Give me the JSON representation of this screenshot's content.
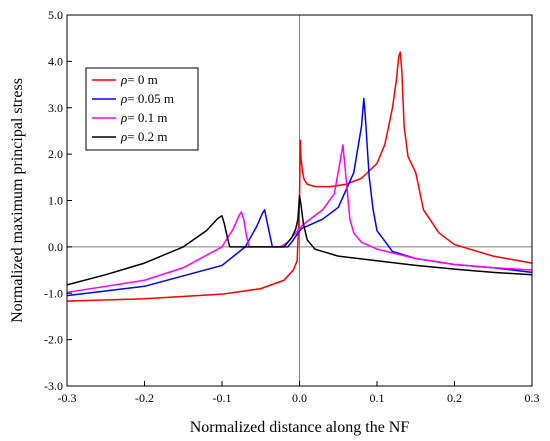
{
  "chart_data": {
    "type": "line",
    "xlabel": "Normalized distance along the NF",
    "ylabel": "Normalized maximum principal stress",
    "xlim": [
      -0.3,
      0.3
    ],
    "ylim": [
      -3.0,
      5.0
    ],
    "x_ticks": [
      "-0.3",
      "-0.2",
      "-0.1",
      "0.0",
      "0.1",
      "0.2",
      "0.3"
    ],
    "y_ticks": [
      "-3.0",
      "-2.0",
      "-1.0",
      "0.0",
      "1.0",
      "2.0",
      "3.0",
      "4.0",
      "5.0"
    ],
    "legend": {
      "placement": "top-left"
    },
    "reference_lines": {
      "x": 0,
      "y": 0
    },
    "series": [
      {
        "name_symbol": "ρ",
        "name_rest": "= 0 m",
        "color": "#ff0000",
        "x": [
          -0.3,
          -0.2,
          -0.1,
          -0.05,
          -0.02,
          -0.008,
          -0.003,
          0.0,
          0.001,
          0.002,
          0.004,
          0.006,
          0.01,
          0.02,
          0.04,
          0.06,
          0.08,
          0.1,
          0.11,
          0.12,
          0.125,
          0.128,
          0.13,
          0.132,
          0.135,
          0.14,
          0.15,
          0.16,
          0.18,
          0.2,
          0.25,
          0.3
        ],
        "y": [
          -1.17,
          -1.12,
          -1.02,
          -0.9,
          -0.72,
          -0.5,
          -0.3,
          1.0,
          2.3,
          1.9,
          1.6,
          1.45,
          1.35,
          1.3,
          1.3,
          1.35,
          1.48,
          1.8,
          2.2,
          3.0,
          3.6,
          4.1,
          4.2,
          3.8,
          2.6,
          1.95,
          1.6,
          0.8,
          0.3,
          0.05,
          -0.2,
          -0.35
        ]
      },
      {
        "name_symbol": "ρ",
        "name_rest": "= 0.05 m",
        "color": "#0000ff",
        "x": [
          -0.3,
          -0.2,
          -0.1,
          -0.07,
          -0.055,
          -0.048,
          -0.045,
          -0.042,
          -0.035,
          -0.025,
          -0.015,
          -0.008,
          -0.002,
          0.003,
          0.01,
          0.03,
          0.05,
          0.07,
          0.08,
          0.083,
          0.085,
          0.088,
          0.09,
          0.095,
          0.1,
          0.12,
          0.15,
          0.2,
          0.25,
          0.3
        ],
        "y": [
          -1.05,
          -0.85,
          -0.4,
          0.0,
          0.45,
          0.72,
          0.8,
          0.55,
          0.0,
          0.0,
          0.0,
          0.15,
          0.3,
          0.4,
          0.45,
          0.6,
          0.85,
          1.6,
          2.6,
          3.2,
          2.8,
          2.0,
          1.5,
          0.8,
          0.35,
          -0.1,
          -0.25,
          -0.38,
          -0.45,
          -0.55
        ]
      },
      {
        "name_symbol": "ρ",
        "name_rest": "= 0.1 m",
        "color": "#ff00ff",
        "x": [
          -0.3,
          -0.2,
          -0.15,
          -0.1,
          -0.085,
          -0.078,
          -0.075,
          -0.072,
          -0.068,
          -0.065,
          -0.06,
          -0.04,
          -0.025,
          -0.015,
          -0.005,
          0.003,
          0.01,
          0.03,
          0.045,
          0.052,
          0.056,
          0.06,
          0.065,
          0.07,
          0.08,
          0.1,
          0.15,
          0.2,
          0.25,
          0.3
        ],
        "y": [
          -0.98,
          -0.72,
          -0.45,
          0.0,
          0.4,
          0.68,
          0.75,
          0.6,
          0.2,
          0.0,
          0.0,
          0.0,
          0.0,
          0.1,
          0.3,
          0.45,
          0.55,
          0.8,
          1.15,
          1.8,
          2.2,
          1.5,
          0.6,
          0.3,
          0.1,
          -0.05,
          -0.25,
          -0.38,
          -0.45,
          -0.5
        ]
      },
      {
        "name_symbol": "ρ",
        "name_rest": "= 0.2 m",
        "color": "#000000",
        "x": [
          -0.3,
          -0.25,
          -0.2,
          -0.15,
          -0.12,
          -0.105,
          -0.1,
          -0.097,
          -0.093,
          -0.09,
          -0.05,
          -0.02,
          -0.01,
          -0.005,
          -0.002,
          0.0,
          0.002,
          0.005,
          0.01,
          0.02,
          0.05,
          0.1,
          0.15,
          0.2,
          0.25,
          0.3
        ],
        "y": [
          -0.82,
          -0.6,
          -0.35,
          0.0,
          0.35,
          0.62,
          0.67,
          0.5,
          0.2,
          0.0,
          0.0,
          0.0,
          0.2,
          0.38,
          0.6,
          1.1,
          0.9,
          0.5,
          0.15,
          -0.05,
          -0.2,
          -0.3,
          -0.4,
          -0.48,
          -0.55,
          -0.6
        ]
      }
    ]
  }
}
